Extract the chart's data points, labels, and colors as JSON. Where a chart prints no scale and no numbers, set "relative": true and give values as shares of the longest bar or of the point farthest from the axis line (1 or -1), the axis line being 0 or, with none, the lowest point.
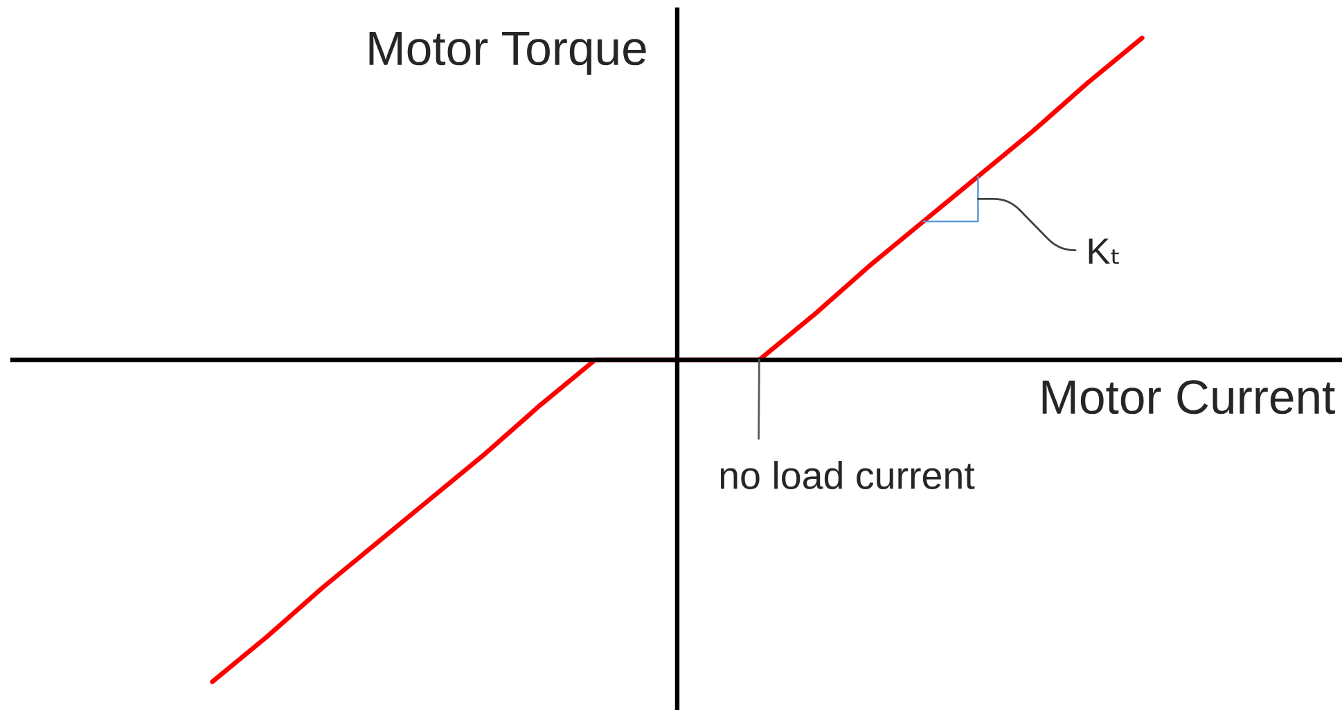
{
  "chart_data": {
    "type": "line",
    "xlabel": "Motor Current",
    "ylabel": "Motor Torque",
    "annotations": [
      "Kₜ",
      "no load current"
    ],
    "categories": [
      null,
      null,
      null,
      null,
      null,
      null,
      null,
      null,
      null,
      null,
      null,
      null,
      null,
      null,
      null,
      null,
      null,
      null
    ],
    "series": [
      {
        "color": "#ff0000",
        "values": [
          -1,
          -0.86,
          -0.71,
          -0.57,
          -0.43,
          -0.29,
          -0.14,
          0,
          0,
          0,
          0,
          0.14,
          0.29,
          0.43,
          0.57,
          0.71,
          0.86,
          1
        ]
      }
    ],
    "relative": true,
    "marker": "none",
    "line_style": "solid"
  }
}
